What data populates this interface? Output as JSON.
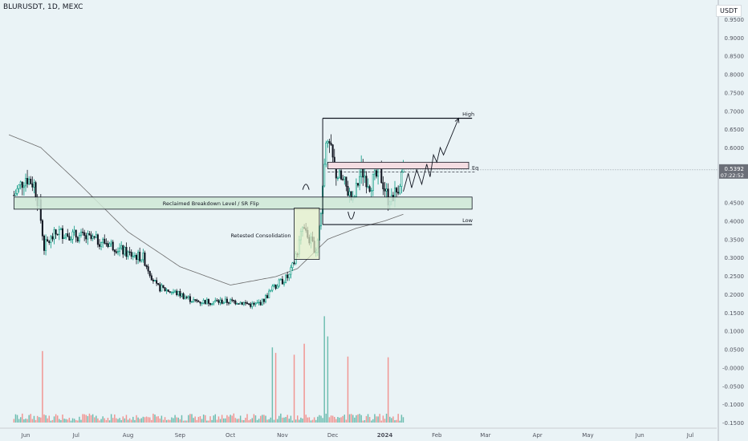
{
  "title": "BLURUSDT, 1D, MEXC",
  "currency": "USDT",
  "last_price": "0.5392",
  "countdown": "07:22:52",
  "colors": {
    "up": "#089981",
    "down": "#131722",
    "ma": "#6b6b6b",
    "zone_green_fill": "#cfe8d6",
    "zone_pink_fill": "#f4dde2",
    "vol_up": "#5fb7a8",
    "vol_down": "#f28a86",
    "label_bg": "#6b6f78"
  },
  "chart_data": {
    "type": "candlestick",
    "x_tick_labels": [
      "Jun",
      "Jul",
      "Aug",
      "Sep",
      "Oct",
      "Nov",
      "Dec",
      "2024",
      "Feb",
      "Mar",
      "Apr",
      "May",
      "Jun",
      "Jul"
    ],
    "y_ticks": [
      "0.9500",
      "0.9000",
      "0.8500",
      "0.8000",
      "0.7500",
      "0.7000",
      "0.6500",
      "0.6000",
      "0.5500",
      "0.4500",
      "0.4000",
      "0.3500",
      "0.3000",
      "0.2500",
      "0.2000",
      "0.1500",
      "0.1000",
      "0.0500",
      "-0.0000",
      "-0.0500",
      "-0.1000",
      "-0.1500"
    ],
    "ylim": [
      -0.155,
      0.98
    ],
    "annotations": {
      "high_label": "High",
      "eq_label": "Eq",
      "low_label": "Low",
      "sr_zone_label": "Reclaimed Breakdown Level / SR Flip",
      "consolidation_label": "Retested Consolidation"
    },
    "levels": {
      "high": 0.68,
      "low": 0.39,
      "eq_zone": [
        0.542,
        0.56
      ],
      "sr_zone": [
        0.432,
        0.465
      ],
      "consolidation_box": [
        0.295,
        0.435
      ]
    },
    "price_anchors": [
      [
        "2023-05-25",
        0.47
      ],
      [
        "2023-06-01",
        0.52
      ],
      [
        "2023-06-06",
        0.5
      ],
      [
        "2023-06-09",
        0.44
      ],
      [
        "2023-06-12",
        0.33
      ],
      [
        "2023-06-20",
        0.37
      ],
      [
        "2023-07-01",
        0.36
      ],
      [
        "2023-07-10",
        0.35
      ],
      [
        "2023-07-20",
        0.34
      ],
      [
        "2023-08-01",
        0.31
      ],
      [
        "2023-08-10",
        0.3
      ],
      [
        "2023-08-18",
        0.22
      ],
      [
        "2023-09-01",
        0.2
      ],
      [
        "2023-09-10",
        0.18
      ],
      [
        "2023-09-25",
        0.18
      ],
      [
        "2023-10-05",
        0.18
      ],
      [
        "2023-10-15",
        0.17
      ],
      [
        "2023-10-20",
        0.18
      ],
      [
        "2023-10-27",
        0.22
      ],
      [
        "2023-11-05",
        0.25
      ],
      [
        "2023-11-09",
        0.3
      ],
      [
        "2023-11-13",
        0.38
      ],
      [
        "2023-11-17",
        0.35
      ],
      [
        "2023-11-21",
        0.32
      ],
      [
        "2023-11-24",
        0.42
      ],
      [
        "2023-11-27",
        0.64
      ],
      [
        "2023-11-29",
        0.6
      ],
      [
        "2023-12-03",
        0.53
      ],
      [
        "2023-12-08",
        0.5
      ],
      [
        "2023-12-13",
        0.45
      ],
      [
        "2023-12-18",
        0.54
      ],
      [
        "2023-12-23",
        0.5
      ],
      [
        "2023-12-29",
        0.53
      ],
      [
        "2024-01-03",
        0.46
      ],
      [
        "2024-01-08",
        0.48
      ],
      [
        "2024-01-12",
        0.54
      ]
    ],
    "ma_anchors": [
      [
        "2023-05-22",
        0.635
      ],
      [
        "2023-06-10",
        0.6
      ],
      [
        "2023-07-01",
        0.51
      ],
      [
        "2023-08-01",
        0.37
      ],
      [
        "2023-09-01",
        0.275
      ],
      [
        "2023-10-01",
        0.225
      ],
      [
        "2023-10-28",
        0.248
      ],
      [
        "2023-11-10",
        0.27
      ],
      [
        "2023-11-28",
        0.35
      ],
      [
        "2023-12-15",
        0.38
      ],
      [
        "2024-01-01",
        0.4
      ],
      [
        "2024-01-12",
        0.418
      ]
    ],
    "projection_path": [
      [
        "2024-01-12",
        0.48
      ],
      [
        "2024-01-15",
        0.53
      ],
      [
        "2024-01-17",
        0.49
      ],
      [
        "2024-01-20",
        0.54
      ],
      [
        "2024-01-23",
        0.5
      ],
      [
        "2024-01-26",
        0.555
      ],
      [
        "2024-01-28",
        0.52
      ],
      [
        "2024-01-30",
        0.58
      ],
      [
        "2024-02-01",
        0.56
      ],
      [
        "2024-02-03",
        0.6
      ],
      [
        "2024-02-05",
        0.58
      ],
      [
        "2024-02-14",
        0.68
      ]
    ],
    "volume_spikes": [
      [
        "2023-11-26",
        0.14
      ],
      [
        "2023-11-28",
        0.085
      ],
      [
        "2023-11-14",
        0.065
      ],
      [
        "2023-10-26",
        0.055
      ],
      [
        "2023-06-11",
        0.045
      ],
      [
        "2023-10-28",
        0.04
      ],
      [
        "2023-11-08",
        0.035
      ],
      [
        "2023-12-10",
        0.03
      ],
      [
        "2024-01-03",
        0.028
      ]
    ]
  }
}
